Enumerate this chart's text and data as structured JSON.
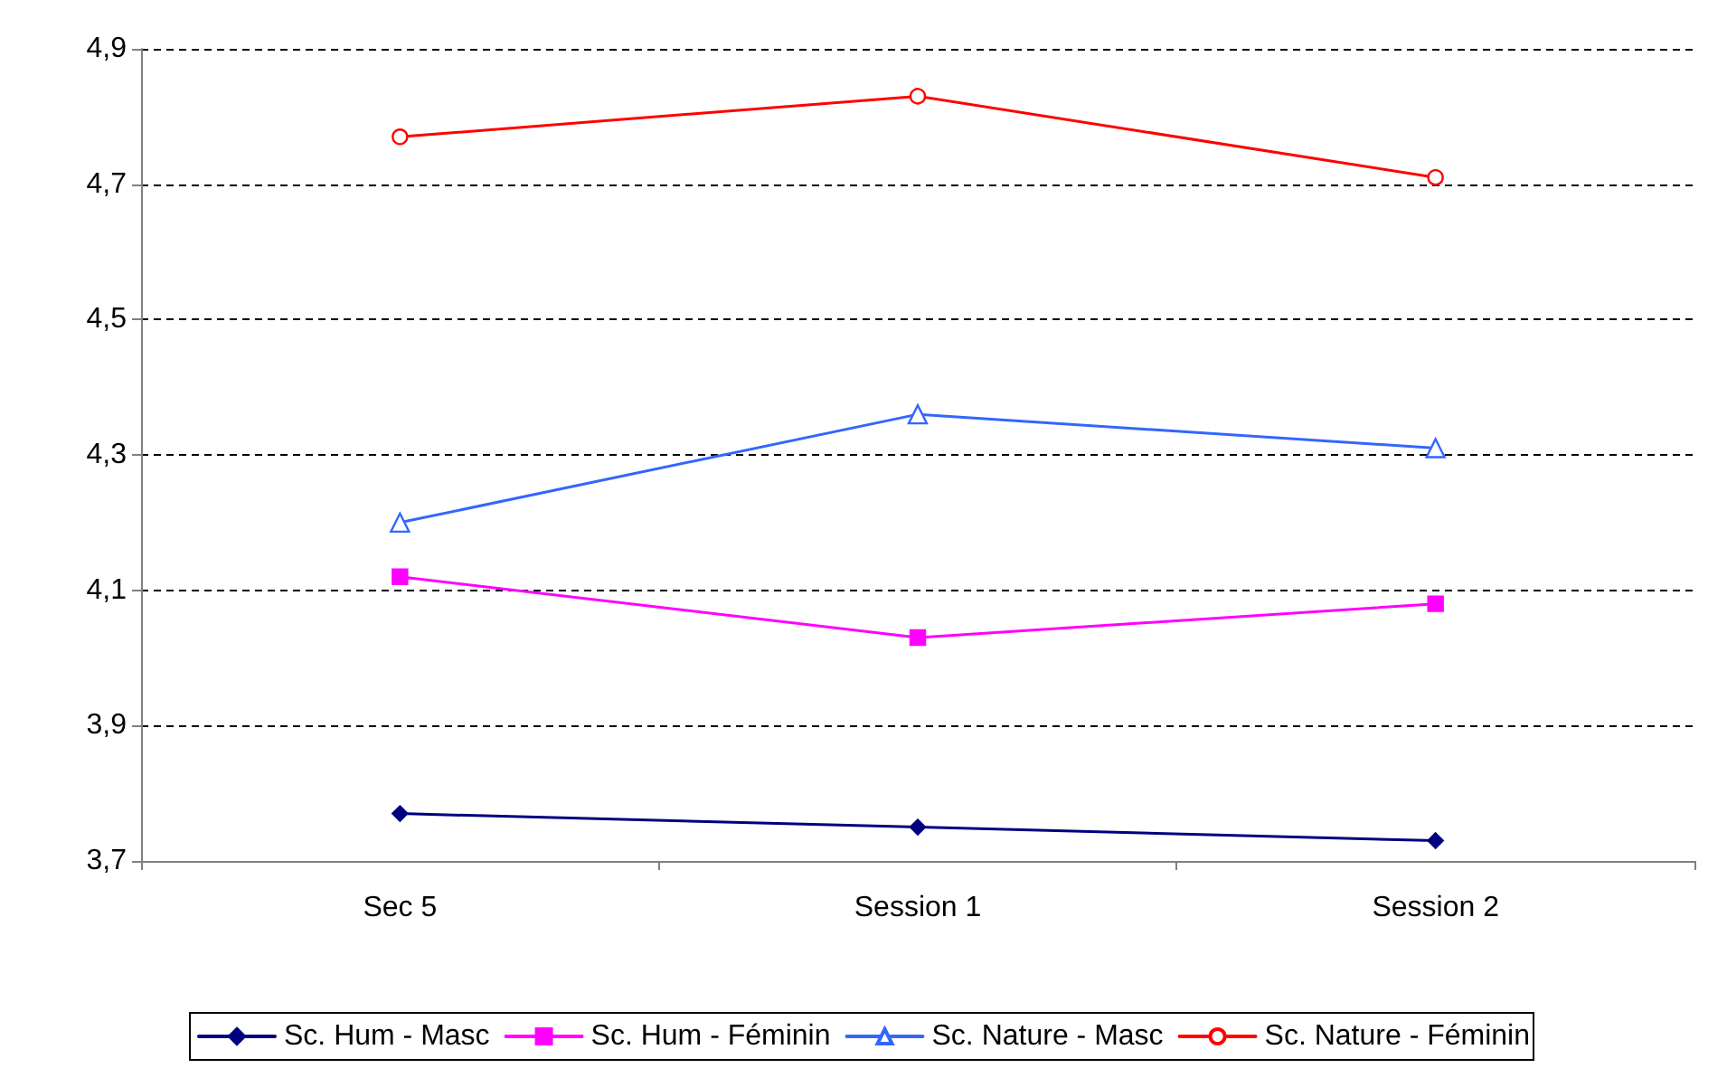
{
  "chart_data": {
    "type": "line",
    "categories": [
      "Sec 5",
      "Session 1",
      "Session 2"
    ],
    "series": [
      {
        "name": "Sc. Hum - Masc",
        "color": "#000080",
        "marker": "diamond",
        "values": [
          3.77,
          3.75,
          3.73
        ]
      },
      {
        "name": "Sc. Hum - Féminin",
        "color": "#ff00ff",
        "marker": "square",
        "values": [
          4.12,
          4.03,
          4.08
        ]
      },
      {
        "name": "Sc. Nature - Masc",
        "color": "#3366ff",
        "marker": "triangle",
        "values": [
          4.2,
          4.36,
          4.31
        ]
      },
      {
        "name": "Sc. Nature - Féminin",
        "color": "#ff0000",
        "marker": "circle",
        "values": [
          4.77,
          4.83,
          4.71
        ]
      }
    ],
    "ylim": [
      3.7,
      4.9
    ],
    "yticks": [
      {
        "value": 3.7,
        "label": "3,7"
      },
      {
        "value": 3.9,
        "label": "3,9"
      },
      {
        "value": 4.1,
        "label": "4,1"
      },
      {
        "value": 4.3,
        "label": "4,3"
      },
      {
        "value": 4.5,
        "label": "4,5"
      },
      {
        "value": 4.7,
        "label": "4,7"
      },
      {
        "value": 4.9,
        "label": "4,9"
      }
    ],
    "grid": "y",
    "line_style": "solid",
    "legend": "bottom"
  }
}
